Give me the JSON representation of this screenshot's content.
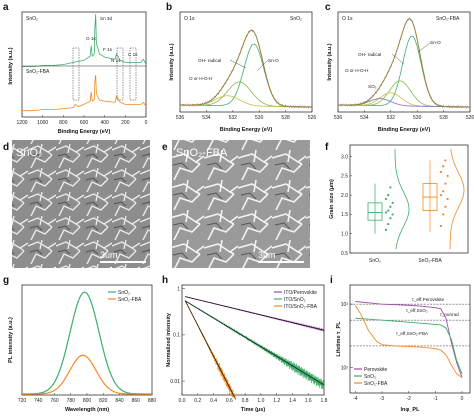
{
  "panels": {
    "a": {
      "label": "a",
      "ylabel": "Intensity (a.u.)",
      "xlabel": "Binding Energy (eV)",
      "xticks": [
        "1200",
        "1000",
        "800",
        "600",
        "400",
        "200",
        "0"
      ],
      "xlim": [
        1200,
        0
      ],
      "series": [
        {
          "name": "SnO₂",
          "color": "#3fae6b"
        },
        {
          "name": "SnO₂-FBA",
          "color": "#f08a24"
        }
      ],
      "peak_labels": [
        "Sn 3d",
        "O 1s",
        "F 1s",
        "N 1s",
        "C 1s"
      ]
    },
    "b": {
      "label": "b",
      "corner_left": "O 1s",
      "corner_right": "SnO₂",
      "xlabel": "Binding Energy (eV)",
      "ylabel": "Intensity (a.u.)",
      "xticks": [
        "536",
        "534",
        "532",
        "530",
        "528",
        "526"
      ],
      "xlim": [
        536,
        526
      ],
      "annotations": [
        "OH- radical",
        "Sn-O",
        "O or H-O-H"
      ]
    },
    "c": {
      "label": "c",
      "corner_left": "O 1s",
      "corner_right": "SnO₂-FBA",
      "xlabel": "Binding Energy (eV)",
      "ylabel": "Intensity (a.u.)",
      "xticks": [
        "536",
        "534",
        "532",
        "530",
        "528",
        "526"
      ],
      "xlim": [
        536,
        526
      ],
      "annotations": [
        "OH- radical",
        "Sn-O",
        "O or H-O-H",
        "SO₃"
      ]
    },
    "d": {
      "label": "d",
      "title": "SnO₂",
      "scale": "3um"
    },
    "e": {
      "label": "e",
      "title": "SnO₂-FBA",
      "scale": "3um"
    },
    "f": {
      "label": "f",
      "ylabel": "Grain size (μm)",
      "yticks": [
        "0.5",
        "1.0",
        "1.5",
        "2.0",
        "2.5",
        "3.0"
      ],
      "categories": [
        "SnO₂",
        "SnO₂-FBA"
      ]
    },
    "g": {
      "label": "g",
      "ylabel": "PL intensity (a.u.)",
      "xlabel": "Wavelength (nm)",
      "xticks": [
        "720",
        "740",
        "760",
        "780",
        "800",
        "820",
        "840",
        "860",
        "880"
      ],
      "legend": [
        "SnO₂",
        "SnO₂-FBA"
      ]
    },
    "h": {
      "label": "h",
      "ylabel": "Normalized intensity",
      "xlabel": "Time (μs)",
      "xticks": [
        "0.0",
        "0.2",
        "0.4",
        "0.6",
        "0.8",
        "1.0",
        "1.2",
        "1.4",
        "1.6",
        "1.8"
      ],
      "yticks": [
        "1",
        "0.1",
        "0.01"
      ],
      "legend": [
        "ITO/Perovskite",
        "ITO/SnO₂",
        "ITO/SnO₂-FBA"
      ]
    },
    "i": {
      "label": "i",
      "ylabel": "Lifetime τ_PL",
      "xlabel": "lnφ_PL",
      "xticks": [
        "-4",
        "-3",
        "-2",
        "-1",
        "0"
      ],
      "yticks": [
        "10³",
        "10²"
      ],
      "legend": [
        "Perovskite",
        "SnO₂",
        "SnO₂-FBA"
      ],
      "annotations": [
        "τ_eff,Perovskite",
        "τ_eff,SnO₂",
        "τ_nonrad",
        "τ_eff,SnO₂-FBA"
      ]
    }
  },
  "chart_data": [
    {
      "type": "line",
      "panel": "a",
      "xlabel": "Binding Energy (eV)",
      "ylabel": "Intensity (a.u.)",
      "xlim": [
        1200,
        0
      ],
      "series": [
        {
          "name": "SnO₂",
          "x": [
            1200,
            1100,
            1000,
            900,
            800,
            700,
            600,
            540,
            531,
            520,
            500,
            495,
            487,
            480,
            450,
            400,
            300,
            285,
            250,
            200,
            150,
            100,
            50,
            25,
            0
          ],
          "y": [
            0.48,
            0.48,
            0.49,
            0.49,
            0.5,
            0.52,
            0.54,
            0.58,
            0.68,
            0.58,
            0.6,
            0.85,
            0.98,
            0.7,
            0.6,
            0.57,
            0.55,
            0.6,
            0.54,
            0.52,
            0.52,
            0.52,
            0.52,
            0.55,
            0.5
          ]
        },
        {
          "name": "SnO₂-FBA",
          "x": [
            1200,
            1100,
            1000,
            900,
            800,
            700,
            688,
            650,
            600,
            540,
            531,
            520,
            500,
            495,
            487,
            480,
            450,
            400,
            300,
            285,
            250,
            200,
            150,
            100,
            50,
            25,
            0
          ],
          "y": [
            0.06,
            0.06,
            0.07,
            0.07,
            0.08,
            0.09,
            0.12,
            0.1,
            0.12,
            0.15,
            0.24,
            0.15,
            0.17,
            0.34,
            0.4,
            0.22,
            0.16,
            0.15,
            0.14,
            0.2,
            0.14,
            0.12,
            0.12,
            0.12,
            0.12,
            0.14,
            0.1
          ]
        }
      ]
    },
    {
      "type": "line",
      "panel": "b",
      "xlabel": "Binding Energy (eV)",
      "xlim": [
        536,
        526
      ],
      "ylim": [
        0,
        1
      ],
      "components": [
        {
          "name": "Sn-O",
          "center": 530.4,
          "height": 0.62,
          "width": 0.75
        },
        {
          "name": "OH- radical",
          "center": 531.5,
          "height": 0.24,
          "width": 0.9
        },
        {
          "name": "O or H-O-H",
          "center": 532.4,
          "height": 0.1,
          "width": 0.9
        }
      ]
    },
    {
      "type": "line",
      "panel": "c",
      "xlabel": "Binding Energy (eV)",
      "xlim": [
        536,
        526
      ],
      "ylim": [
        0,
        1
      ],
      "components": [
        {
          "name": "Sn-O",
          "center": 530.4,
          "height": 0.7,
          "width": 0.7
        },
        {
          "name": "OH- radical",
          "center": 531.3,
          "height": 0.25,
          "width": 0.8
        },
        {
          "name": "O or H-O-H",
          "center": 532.0,
          "height": 0.13,
          "width": 0.8
        },
        {
          "name": "SO₃",
          "center": 532.8,
          "height": 0.07,
          "width": 0.8
        }
      ]
    },
    {
      "type": "scatter",
      "panel": "f",
      "ylabel": "Grain size (μm)",
      "ylim": [
        0.5,
        3.3
      ],
      "categories": [
        "SnO₂",
        "SnO₂-FBA"
      ],
      "box": [
        {
          "q1": 1.35,
          "median": 1.55,
          "q3": 1.8,
          "min": 1.0,
          "max": 2.3
        },
        {
          "q1": 1.6,
          "median": 1.95,
          "q3": 2.3,
          "min": 1.05,
          "max": 2.9
        }
      ],
      "points": [
        [
          1.1,
          1.25,
          1.4,
          1.5,
          1.55,
          1.6,
          1.7,
          1.8,
          1.9,
          2.0,
          2.2
        ],
        [
          1.2,
          1.5,
          1.7,
          1.9,
          2.0,
          2.1,
          2.3,
          2.5,
          2.6,
          2.75,
          2.9
        ]
      ]
    },
    {
      "type": "line",
      "panel": "g",
      "xlabel": "Wavelength (nm)",
      "ylabel": "PL intensity (a.u.)",
      "xlim": [
        720,
        880
      ],
      "series": [
        {
          "name": "SnO₂",
          "center": 797,
          "peak": 1.0,
          "fwhm": 42
        },
        {
          "name": "SnO₂-FBA",
          "center": 795,
          "peak": 0.38,
          "fwhm": 38
        }
      ]
    },
    {
      "type": "line",
      "panel": "h",
      "xlabel": "Time (μs)",
      "ylabel": "Normalized intensity",
      "xlim": [
        0,
        1.8
      ],
      "ylim": [
        0.005,
        1
      ],
      "yscale": "log",
      "series": [
        {
          "name": "ITO/Perovskite",
          "tau": 1.05,
          "amp": 0.7
        },
        {
          "name": "ITO/SnO₂",
          "tau": 0.42,
          "amp": 0.6
        },
        {
          "name": "ITO/SnO₂-FBA",
          "tau": 0.13,
          "amp": 0.75
        }
      ]
    },
    {
      "type": "line",
      "panel": "i",
      "xlabel": "lnφ_PL",
      "ylabel": "Lifetime τ_PL",
      "xlim": [
        -4.2,
        0.3
      ],
      "yscale": "log",
      "series": [
        {
          "name": "Perovskite",
          "x": [
            -4,
            -3.5,
            -3,
            -2.5,
            -2,
            -1.5,
            -1,
            -0.8,
            -0.6,
            -0.4,
            -0.2,
            0
          ],
          "y": [
            1100,
            1050,
            1000,
            980,
            960,
            930,
            880,
            850,
            600,
            250,
            120,
            70
          ]
        },
        {
          "name": "SnO₂",
          "x": [
            -4,
            -3.5,
            -3,
            -2.5,
            -2,
            -1.5,
            -1,
            -0.8,
            -0.6,
            -0.4,
            -0.2,
            0
          ],
          "y": [
            600,
            580,
            560,
            540,
            520,
            500,
            480,
            470,
            420,
            280,
            130,
            80
          ]
        },
        {
          "name": "SnO₂-FBA",
          "x": [
            -4,
            -3.8,
            -3.5,
            -3.2,
            -3,
            -2.5,
            -2,
            -1.5,
            -1,
            -0.8,
            -0.6,
            -0.4,
            -0.2,
            0
          ],
          "y": [
            950,
            700,
            380,
            260,
            230,
            220,
            215,
            210,
            200,
            190,
            160,
            110,
            80,
            70
          ]
        }
      ]
    }
  ]
}
